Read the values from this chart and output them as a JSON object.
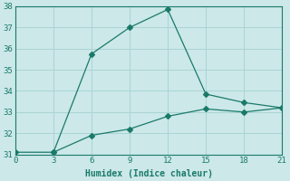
{
  "xlabel": "Humidex (Indice chaleur)",
  "line1_x": [
    0,
    3,
    6,
    9,
    12,
    15,
    18,
    21
  ],
  "line1_y": [
    31.1,
    31.1,
    31.9,
    32.2,
    32.8,
    33.15,
    33.0,
    33.2
  ],
  "line2_x": [
    3,
    6,
    9,
    12,
    15,
    18,
    21
  ],
  "line2_y": [
    31.1,
    35.75,
    37.0,
    37.85,
    33.85,
    33.45,
    33.2
  ],
  "line_color": "#1a7a6a",
  "bg_color": "#cce8e8",
  "grid_color": "#aad4d4",
  "xlim": [
    0,
    21
  ],
  "ylim": [
    31,
    38
  ],
  "xticks": [
    0,
    3,
    6,
    9,
    12,
    15,
    18,
    21
  ],
  "yticks": [
    31,
    32,
    33,
    34,
    35,
    36,
    37,
    38
  ],
  "marker": "D",
  "marker_size": 3
}
